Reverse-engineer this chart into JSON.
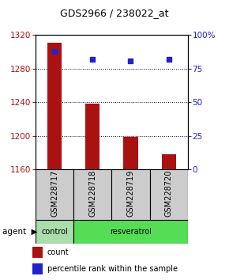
{
  "title": "GDS2966 / 238022_at",
  "samples": [
    "GSM228717",
    "GSM228718",
    "GSM228719",
    "GSM228720"
  ],
  "bar_values": [
    1311,
    1238,
    1199,
    1178
  ],
  "percentile_values": [
    88,
    82,
    81,
    82
  ],
  "ymin": 1160,
  "ymax": 1320,
  "yticks_left": [
    1160,
    1200,
    1240,
    1280,
    1320
  ],
  "yticks_right": [
    0,
    25,
    50,
    75,
    100
  ],
  "bar_color": "#aa1111",
  "percentile_color": "#2222cc",
  "control_color": "#aaddaa",
  "resveratrol_color": "#55dd55",
  "sample_box_color": "#cccccc",
  "title_fontsize": 9,
  "tick_fontsize": 7.5,
  "label_fontsize": 7,
  "agent_text": "agent"
}
